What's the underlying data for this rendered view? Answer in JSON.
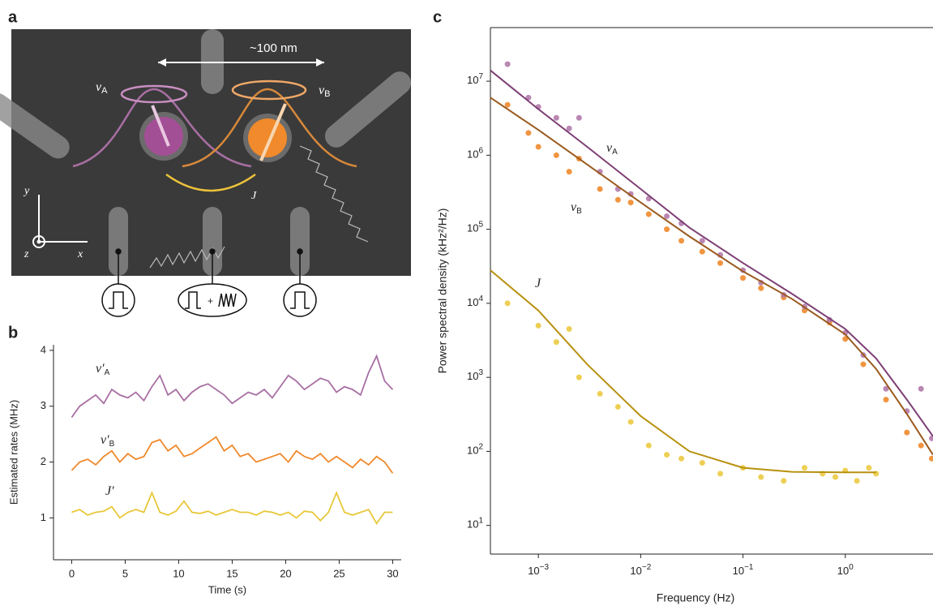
{
  "micrograph": {
    "panel_label": "a",
    "scale": "~100 nm",
    "label_a": {
      "text": "ν",
      "sub": "A"
    },
    "label_b": {
      "text": "ν",
      "sub": "B"
    },
    "coupling": "J",
    "axes": [
      "y",
      "x",
      "z"
    ],
    "plus": "+"
  },
  "chart_data": [
    {
      "type": "line",
      "panel_label": "b",
      "x": [
        0,
        0.75,
        1.5,
        2.25,
        3,
        3.75,
        4.5,
        5.25,
        6,
        6.75,
        7.5,
        8.25,
        9,
        9.75,
        10.5,
        11.25,
        12,
        12.75,
        13.5,
        14.25,
        15,
        15.75,
        16.5,
        17.25,
        18,
        18.75,
        19.5,
        20.25,
        21,
        21.75,
        22.5,
        23.25,
        24,
        24.75,
        25.5,
        26.25,
        27,
        27.75,
        28.5,
        29.25,
        30
      ],
      "xlim": [
        -1.7,
        30.8
      ],
      "xticks": [
        0,
        5,
        10,
        15,
        20,
        25,
        30
      ],
      "ylim": [
        0.25,
        4.1
      ],
      "yticks": [
        1,
        2,
        3,
        4
      ],
      "xlabel": "Time (s)",
      "ylabel": "Estimated rates (MHz)",
      "series": [
        {
          "name": "ν′",
          "subscript": "A",
          "color": "#a86fa3",
          "values": [
            2.8,
            3.0,
            3.1,
            3.2,
            3.05,
            3.3,
            3.2,
            3.15,
            3.25,
            3.1,
            3.35,
            3.55,
            3.2,
            3.3,
            3.1,
            3.25,
            3.35,
            3.4,
            3.3,
            3.2,
            3.05,
            3.15,
            3.25,
            3.2,
            3.3,
            3.15,
            3.35,
            3.55,
            3.45,
            3.3,
            3.4,
            3.5,
            3.45,
            3.25,
            3.35,
            3.3,
            3.2,
            3.6,
            3.9,
            3.45,
            3.3
          ]
        },
        {
          "name": "ν′",
          "subscript": "B",
          "color": "#f08a2c",
          "values": [
            1.85,
            2.0,
            2.05,
            1.95,
            2.1,
            2.2,
            2.0,
            2.15,
            2.05,
            2.1,
            2.35,
            2.4,
            2.2,
            2.3,
            2.1,
            2.15,
            2.25,
            2.35,
            2.45,
            2.2,
            2.3,
            2.1,
            2.15,
            2.0,
            2.05,
            2.1,
            2.15,
            2.0,
            2.2,
            2.1,
            2.05,
            2.15,
            2.0,
            2.1,
            2.0,
            1.9,
            2.05,
            1.95,
            2.1,
            2.0,
            1.8
          ]
        },
        {
          "name": "J′",
          "color": "#e8c83a",
          "values": [
            1.1,
            1.15,
            1.05,
            1.1,
            1.12,
            1.2,
            1.0,
            1.1,
            1.15,
            1.1,
            1.45,
            1.1,
            1.05,
            1.12,
            1.3,
            1.1,
            1.08,
            1.12,
            1.05,
            1.1,
            1.15,
            1.1,
            1.1,
            1.05,
            1.12,
            1.1,
            1.05,
            1.1,
            1.0,
            1.12,
            1.1,
            0.95,
            1.1,
            1.45,
            1.1,
            1.05,
            1.1,
            1.15,
            0.9,
            1.1,
            1.1
          ]
        }
      ]
    },
    {
      "type": "scatter",
      "panel_label": "c",
      "xscale": "log",
      "yscale": "log",
      "xlim": [
        0.00034,
        7.2
      ],
      "ylim": [
        4.1,
        53000000
      ],
      "xticks": [
        {
          "value": 0.001,
          "label": "10",
          "exponent": "−3"
        },
        {
          "value": 0.01,
          "label": "10",
          "exponent": "−2"
        },
        {
          "value": 0.1,
          "label": "10",
          "exponent": "−1"
        },
        {
          "value": 1,
          "label": "10",
          "exponent": "0"
        }
      ],
      "yticks": [
        {
          "value": 10,
          "label": "10",
          "exponent": "1"
        },
        {
          "value": 100,
          "label": "10",
          "exponent": "2"
        },
        {
          "value": 1000,
          "label": "10",
          "exponent": "3"
        },
        {
          "value": 10000,
          "label": "10",
          "exponent": "4"
        },
        {
          "value": 100000,
          "label": "10",
          "exponent": "5"
        },
        {
          "value": 1000000,
          "label": "10",
          "exponent": "6"
        },
        {
          "value": 10000000,
          "label": "10",
          "exponent": "7"
        }
      ],
      "xlabel": "Frequency (Hz)",
      "ylabel": "Power spectral density (kHz²/Hz)",
      "series": [
        {
          "name": "J",
          "color": "#ecca42",
          "x": [
            0.0005,
            0.001,
            0.0015,
            0.002,
            0.0025,
            0.004,
            0.006,
            0.008,
            0.012,
            0.018,
            0.025,
            0.04,
            0.06,
            0.1,
            0.15,
            0.25,
            0.4,
            0.6,
            0.8,
            1.0,
            1.3,
            1.7,
            2.0
          ],
          "values": [
            10000,
            5000,
            3000,
            4500,
            1000,
            600,
            400,
            250,
            120,
            90,
            80,
            70,
            50,
            60,
            45,
            40,
            60,
            50,
            45,
            55,
            40,
            60,
            50
          ],
          "fit": {
            "color": "#b8900e",
            "x": [
              0.00034,
              0.001,
              0.003,
              0.01,
              0.03,
              0.1,
              0.3,
              1,
              2
            ],
            "values": [
              28000,
              8000,
              1500,
              300,
              100,
              60,
              53,
              52,
              52
            ]
          }
        },
        {
          "name": "ν",
          "subscript": "B",
          "color": "#f08a2c",
          "x": [
            0.0005,
            0.0008,
            0.001,
            0.0015,
            0.002,
            0.0025,
            0.004,
            0.006,
            0.008,
            0.012,
            0.018,
            0.025,
            0.04,
            0.06,
            0.1,
            0.15,
            0.25,
            0.4,
            0.7,
            1.0,
            1.5,
            2.5,
            4,
            5.5,
            7
          ],
          "values": [
            4800000,
            2000000,
            1300000,
            1000000,
            600000,
            900000,
            350000,
            250000,
            230000,
            160000,
            100000,
            70000,
            50000,
            35000,
            22000,
            16000,
            12000,
            8000,
            5500,
            3300,
            1500,
            500,
            180,
            120,
            80
          ],
          "fit": {
            "color": "#9a5a1e",
            "x": [
              0.00034,
              0.001,
              0.003,
              0.01,
              0.03,
              0.1,
              0.3,
              1,
              2,
              4,
              7.2
            ],
            "values": [
              6000000,
              2200000,
              750000,
              230000,
              80000,
              27000,
              11500,
              3800,
              1300,
              320,
              90
            ]
          }
        },
        {
          "name": "ν",
          "subscript": "A",
          "color": "#b27aab",
          "x": [
            0.0005,
            0.0008,
            0.001,
            0.0015,
            0.002,
            0.0025,
            0.004,
            0.006,
            0.008,
            0.012,
            0.018,
            0.025,
            0.04,
            0.06,
            0.1,
            0.15,
            0.25,
            0.4,
            0.7,
            1.0,
            1.5,
            2.5,
            4,
            5.5,
            7
          ],
          "values": [
            17000000,
            6000000,
            4500000,
            3200000,
            2300000,
            3200000,
            600000,
            350000,
            300000,
            260000,
            150000,
            120000,
            70000,
            45000,
            28000,
            19000,
            13000,
            9000,
            6000,
            4000,
            2000,
            700,
            350,
            700,
            150
          ],
          "fit": {
            "color": "#7d3f74",
            "x": [
              0.00034,
              0.001,
              0.003,
              0.01,
              0.03,
              0.1,
              0.3,
              1,
              2,
              4,
              7.2
            ],
            "values": [
              14000000,
              4200000,
              1300000,
              350000,
              105000,
              35000,
              13500,
              4500,
              1800,
              500,
              160
            ]
          }
        }
      ]
    }
  ]
}
